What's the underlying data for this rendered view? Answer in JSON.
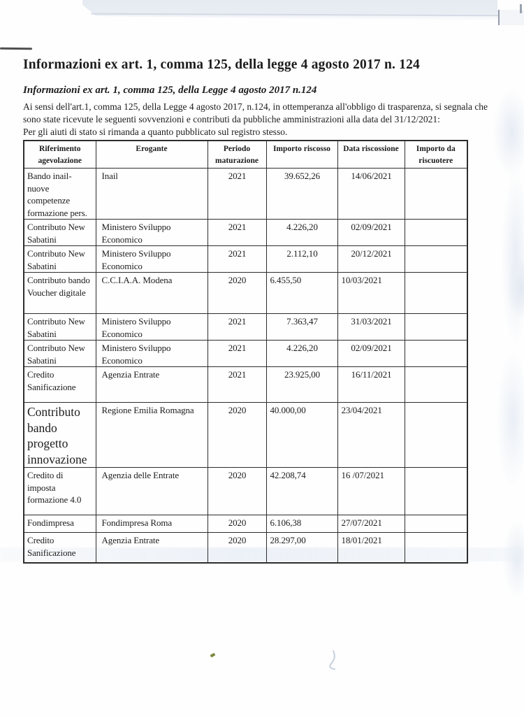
{
  "document": {
    "title": "Informazioni ex art. 1, comma 125, della legge 4 agosto 2017 n. 124",
    "subtitle": "Informazioni ex art. 1, comma 125, della Legge 4 agosto 2017 n.124",
    "intro_line1": "Ai sensi dell'art.1, comma 125, della Legge 4 agosto 2017, n.124, in ottemperanza all'obbligo di trasparenza, si segnala che",
    "intro_line2": "sono state ricevute le seguenti sovvenzioni e contributi da pubbliche amministrazioni alla data del 31/12/2021:",
    "note": "Per gli aiuti di stato si rimanda a quanto pubblicato sul registro stesso."
  },
  "table": {
    "headers": [
      "Riferimento\nagevolazione",
      "Erogante",
      "Periodo\nmaturazione",
      "Importo riscosso",
      "Data riscossione",
      "Importo da\nriscuotere"
    ],
    "rows": [
      {
        "riferimento": "Bando inail-nuove competenze formazione pers.",
        "erogante": "Inail",
        "periodo": "2021",
        "importo_riscosso": "39.652,26",
        "data_riscossione": "14/06/2021",
        "importo_da_riscuotere": ""
      },
      {
        "riferimento": "Contributo New Sabatini",
        "erogante": "Ministero Sviluppo Economico",
        "periodo": "2021",
        "importo_riscosso": "4.226,20",
        "data_riscossione": "02/09/2021",
        "importo_da_riscuotere": ""
      },
      {
        "riferimento": "Contributo New Sabatini",
        "erogante": "Ministero Sviluppo Economico",
        "periodo": "2021",
        "importo_riscosso": "2.112,10",
        "data_riscossione": "20/12/2021",
        "importo_da_riscuotere": ""
      },
      {
        "riferimento": "Contributo bando Voucher digitale",
        "erogante": "C.C.I.A.A. Modena",
        "periodo": "2020",
        "importo_riscosso": "6.455,50",
        "data_riscossione": "10/03/2021",
        "importo_da_riscuotere": ""
      },
      {
        "riferimento": "Contributo New Sabatini",
        "erogante": "Ministero Sviluppo Economico",
        "periodo": "2021",
        "importo_riscosso": "7.363,47",
        "data_riscossione": "31/03/2021",
        "importo_da_riscuotere": ""
      },
      {
        "riferimento": "Contributo New Sabatini",
        "erogante": "Ministero Sviluppo Economico",
        "periodo": "2021",
        "importo_riscosso": "4.226,20",
        "data_riscossione": "02/09/2021",
        "importo_da_riscuotere": ""
      },
      {
        "riferimento": "Credito Sanificazione",
        "erogante": "Agenzia Entrate",
        "periodo": "2021",
        "importo_riscosso": "23.925,00",
        "data_riscossione": "16/11/2021",
        "importo_da_riscuotere": ""
      },
      {
        "riferimento": "Contributo bando progetto innovazione",
        "erogante": "Regione Emilia Romagna",
        "periodo": "2020",
        "importo_riscosso": "40.000,00",
        "data_riscossione": "23/04/2021",
        "importo_da_riscuotere": ""
      },
      {
        "riferimento": "Credito di imposta formazione 4.0",
        "erogante": "Agenzia delle Entrate",
        "periodo": "2020",
        "importo_riscosso": "42.208,74",
        "data_riscossione": "16 /07/2021",
        "importo_da_riscuotere": ""
      },
      {
        "riferimento": "Fondimpresa",
        "erogante": "Fondimpresa Roma",
        "periodo": "2020",
        "importo_riscosso": "6.106,38",
        "data_riscossione": "27/07/2021",
        "importo_da_riscuotere": ""
      },
      {
        "riferimento": "Credito Sanificazione",
        "erogante": "Agenzia Entrate",
        "periodo": "2020",
        "importo_riscosso": "28.297,00",
        "data_riscossione": "18/01/2021",
        "importo_da_riscuotere": ""
      }
    ]
  },
  "colors": {
    "ink": "#1c1c1c",
    "table_border": "#2d2d2d",
    "scan_band": "#e6eaf2",
    "speck_green": "#7c8c40",
    "squiggle_blue": "#a9b6ce"
  }
}
